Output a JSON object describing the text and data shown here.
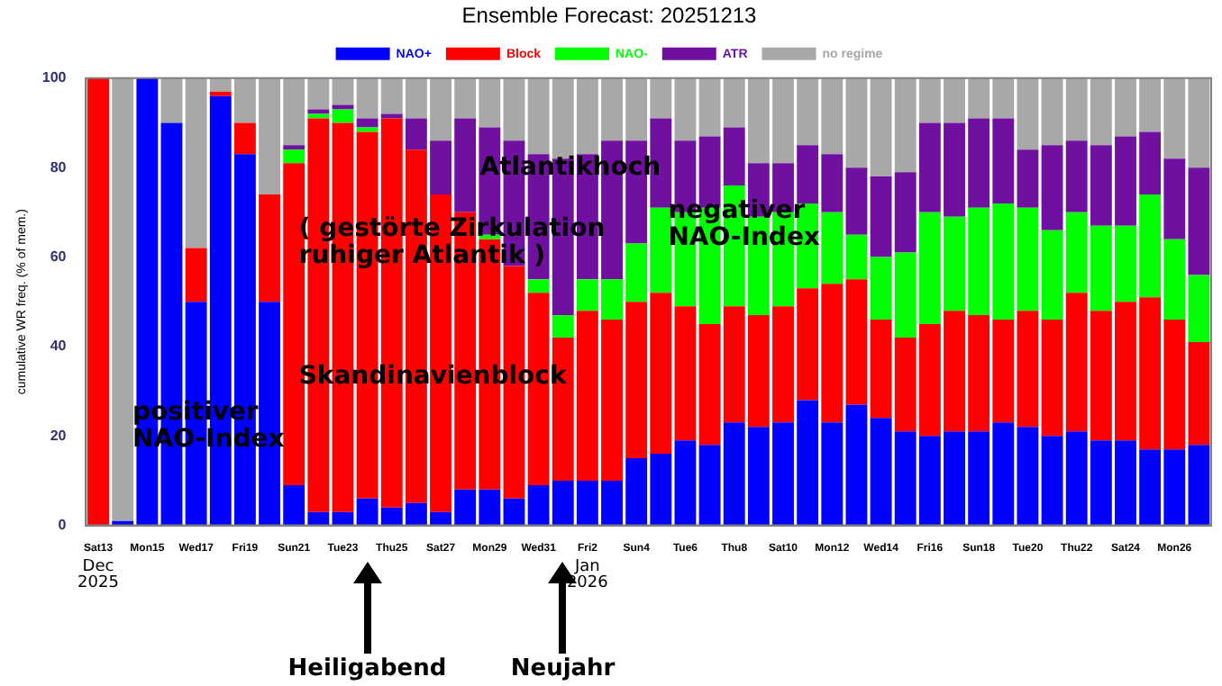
{
  "chart_data": {
    "type": "bar",
    "title": "Ensemble Forecast: 20251213",
    "ylabel": "cumulative WR freq. (% of mem.)",
    "categories": [
      "Sat13",
      null,
      "Mon15",
      null,
      "Wed17",
      null,
      "Fri19",
      null,
      "Sun21",
      null,
      "Tue23",
      null,
      "Thu25",
      null,
      "Sat27",
      null,
      "Mon29",
      null,
      "Wed31",
      null,
      "Fri2",
      null,
      "Sun4",
      null,
      "Tue6",
      null,
      "Thu8",
      null,
      "Sat10",
      null,
      "Mon12",
      null,
      "Wed14",
      null,
      "Fri16",
      null,
      "Sun18",
      null,
      "Tue20",
      null,
      "Thu22",
      null,
      "Sat24",
      null,
      "Mon26",
      null
    ],
    "stacked": true,
    "ylim": [
      0,
      100
    ],
    "yticks": [
      0,
      20,
      40,
      60,
      80,
      100
    ],
    "grid": false,
    "legend": "top",
    "series": [
      {
        "name": "NAO+",
        "color": "#0000ff",
        "values": [
          0,
          1,
          100,
          90,
          50,
          96,
          83,
          50,
          9,
          3,
          3,
          6,
          4,
          5,
          3,
          8,
          8,
          6,
          9,
          10,
          10,
          10,
          15,
          16,
          19,
          18,
          23,
          22,
          23,
          28,
          23,
          27,
          24,
          21,
          20,
          21,
          21,
          23,
          22,
          20,
          21,
          19,
          19,
          17,
          17,
          18
        ]
      },
      {
        "name": "Block",
        "color": "#ff0000",
        "values": [
          100,
          0,
          0,
          0,
          12,
          1,
          7,
          24,
          72,
          88,
          87,
          82,
          87,
          79,
          71,
          62,
          56,
          52,
          43,
          32,
          38,
          36,
          35,
          36,
          30,
          27,
          26,
          25,
          26,
          25,
          31,
          28,
          22,
          21,
          25,
          27,
          26,
          23,
          26,
          26,
          31,
          29,
          31,
          34,
          29,
          23
        ]
      },
      {
        "name": "NAO-",
        "color": "#00ff00",
        "values": [
          0,
          0,
          0,
          0,
          0,
          0,
          0,
          0,
          3,
          1,
          3,
          1,
          0,
          0,
          0,
          0,
          1,
          0,
          3,
          5,
          7,
          9,
          13,
          19,
          21,
          26,
          27,
          22,
          21,
          19,
          16,
          10,
          14,
          19,
          25,
          21,
          24,
          26,
          23,
          20,
          18,
          19,
          17,
          23,
          18,
          15
        ]
      },
      {
        "name": "ATR",
        "color": "#7010a0",
        "values": [
          0,
          0,
          0,
          0,
          0,
          0,
          0,
          0,
          1,
          1,
          1,
          2,
          1,
          7,
          12,
          21,
          24,
          28,
          28,
          35,
          28,
          31,
          23,
          20,
          16,
          16,
          13,
          12,
          11,
          13,
          13,
          15,
          18,
          18,
          20,
          21,
          20,
          19,
          13,
          19,
          16,
          18,
          20,
          14,
          18,
          24
        ]
      },
      {
        "name": "no regime",
        "color": "#a8a8a8",
        "values": [
          0,
          99,
          0,
          10,
          38,
          3,
          10,
          26,
          15,
          7,
          6,
          9,
          8,
          9,
          14,
          9,
          11,
          14,
          17,
          18,
          17,
          14,
          14,
          9,
          14,
          13,
          11,
          19,
          19,
          15,
          17,
          20,
          22,
          21,
          10,
          10,
          9,
          9,
          16,
          15,
          14,
          15,
          13,
          12,
          18,
          20
        ]
      }
    ],
    "annotations": [
      "positiver\nNAO-Index",
      "( gestörte Zirkulation\nruhiger Atlantik )",
      "Skandinavienblock",
      "Atlantikhoch",
      "negativer\nNAO-Index",
      "Dec\n2025",
      "Jan\n2026",
      "Heiligabend",
      "Neujahr"
    ]
  }
}
